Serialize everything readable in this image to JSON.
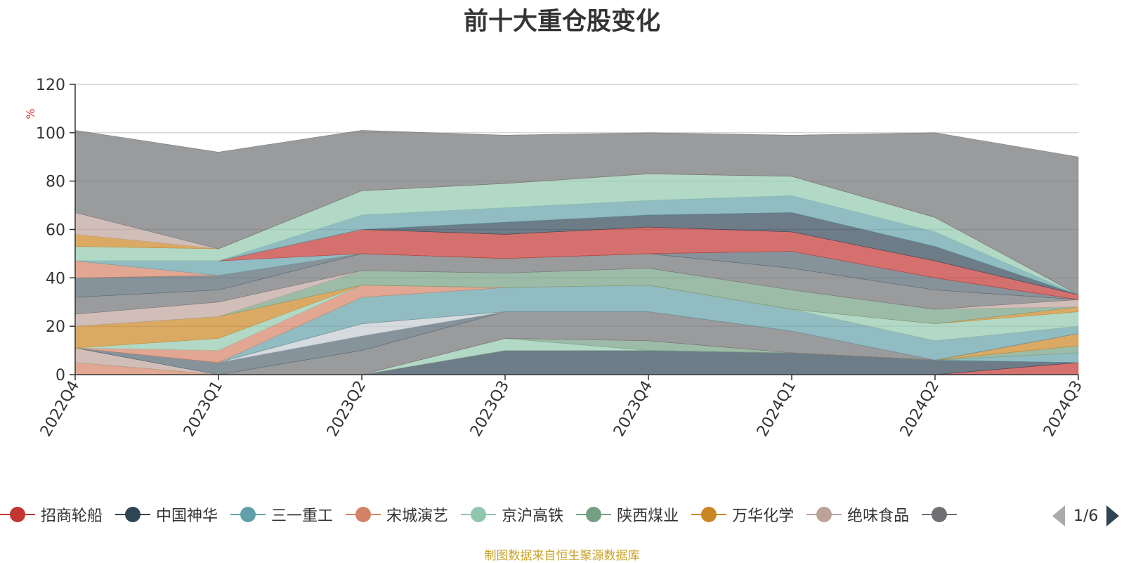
{
  "title": "前十大重仓股变化",
  "footer": "制图数据来自恒生聚源数据库",
  "legend_page": "1/6",
  "chart_data": {
    "type": "area",
    "title": "前十大重仓股变化",
    "ylabel": "%",
    "xlabel": "",
    "ylim": [
      0,
      120
    ],
    "yticks": [
      0,
      20,
      40,
      60,
      80,
      100,
      120
    ],
    "grid": true,
    "legend_position": "bottom",
    "categories": [
      "2022Q4",
      "2023Q1",
      "2023Q2",
      "2023Q3",
      "2023Q4",
      "2024Q1",
      "2024Q2",
      "2024Q3"
    ],
    "series": [
      {
        "name": "招商轮船",
        "color": "#c23531",
        "values": [
          0,
          0,
          0,
          0,
          0,
          0,
          0,
          5
        ]
      },
      {
        "name": "中国神华",
        "color": "#2f4554",
        "values": [
          0,
          0,
          0,
          10,
          10,
          9,
          6,
          0
        ]
      },
      {
        "name": "三一重工",
        "color": "#61a0a8",
        "values": [
          0,
          0,
          0,
          0,
          0,
          0,
          0,
          4
        ]
      },
      {
        "name": "宋城演艺",
        "color": "#d48265",
        "values": [
          5,
          0,
          0,
          0,
          0,
          0,
          0,
          0
        ]
      },
      {
        "name": "京沪高铁",
        "color": "#91c7ae",
        "values": [
          0,
          0,
          0,
          5,
          0,
          0,
          0,
          0
        ]
      },
      {
        "name": "陕西煤业",
        "color": "#749f83",
        "values": [
          0,
          0,
          0,
          0,
          4,
          0,
          0,
          3
        ]
      },
      {
        "name": "万华化学",
        "color": "#ca8622",
        "values": [
          0,
          0,
          0,
          0,
          0,
          0,
          0,
          5
        ]
      },
      {
        "name": "绝味食品",
        "color": "#bda29a",
        "values": [
          6,
          0,
          0,
          0,
          0,
          0,
          0,
          0
        ]
      },
      {
        "name": "",
        "color": "#6e7074",
        "values": [
          0,
          0,
          10,
          11,
          12,
          9,
          0,
          0
        ]
      },
      {
        "name": "",
        "color": "#546570",
        "values": [
          0,
          5,
          6,
          0,
          0,
          0,
          0,
          0
        ]
      },
      {
        "name": "",
        "color": "#c4ccd3",
        "values": [
          0,
          0,
          5,
          0,
          0,
          0,
          0,
          0
        ]
      },
      {
        "name": "",
        "color": "#c23531",
        "values": [
          0,
          0,
          0,
          0,
          0,
          0,
          0,
          0
        ]
      },
      {
        "name": "",
        "color": "#61a0a8",
        "values": [
          0,
          0,
          11,
          10,
          11,
          9,
          8,
          3
        ]
      },
      {
        "name": "",
        "color": "#d48265",
        "values": [
          0,
          5,
          5,
          0,
          0,
          0,
          0,
          0
        ]
      },
      {
        "name": "",
        "color": "#91c7ae",
        "values": [
          0,
          5,
          0,
          0,
          0,
          0,
          7,
          6
        ]
      },
      {
        "name": "",
        "color": "#ca8622",
        "values": [
          9,
          9,
          0,
          0,
          0,
          0,
          0,
          2
        ]
      },
      {
        "name": "",
        "color": "#749f83",
        "values": [
          0,
          0,
          6,
          6,
          7,
          8,
          6,
          0
        ]
      },
      {
        "name": "",
        "color": "#bda29a",
        "values": [
          5,
          6,
          0,
          0,
          0,
          0,
          0,
          3
        ]
      },
      {
        "name": "",
        "color": "#6e7074",
        "values": [
          7,
          5,
          7,
          6,
          6,
          9,
          8,
          0
        ]
      },
      {
        "name": "",
        "color": "#546570",
        "values": [
          8,
          6,
          0,
          0,
          0,
          7,
          5,
          0
        ]
      },
      {
        "name": "",
        "color": "#d48265",
        "values": [
          7,
          0,
          0,
          0,
          0,
          0,
          0,
          0
        ]
      },
      {
        "name": "",
        "color": "#61a0a8",
        "values": [
          0,
          6,
          0,
          0,
          0,
          0,
          0,
          0
        ]
      },
      {
        "name": "",
        "color": "#c23531",
        "values": [
          0,
          0,
          10,
          10,
          11,
          8,
          7,
          2
        ]
      },
      {
        "name": "",
        "color": "#2f4554",
        "values": [
          0,
          0,
          0,
          5,
          5,
          8,
          6,
          0
        ]
      },
      {
        "name": "",
        "color": "#61a0a8",
        "values": [
          0,
          0,
          6,
          6,
          6,
          7,
          6,
          0
        ]
      },
      {
        "name": "",
        "color": "#91c7ae",
        "values": [
          6,
          5,
          10,
          10,
          11,
          8,
          6,
          0
        ]
      },
      {
        "name": "",
        "color": "#ca8622",
        "values": [
          5,
          0,
          0,
          0,
          0,
          0,
          0,
          0
        ]
      },
      {
        "name": "",
        "color": "#bda29a",
        "values": [
          9,
          0,
          0,
          0,
          0,
          0,
          0,
          0
        ]
      },
      {
        "name": "",
        "color": "#6e7074",
        "values": [
          34,
          40,
          25,
          20,
          17,
          17,
          35,
          57
        ]
      }
    ]
  }
}
